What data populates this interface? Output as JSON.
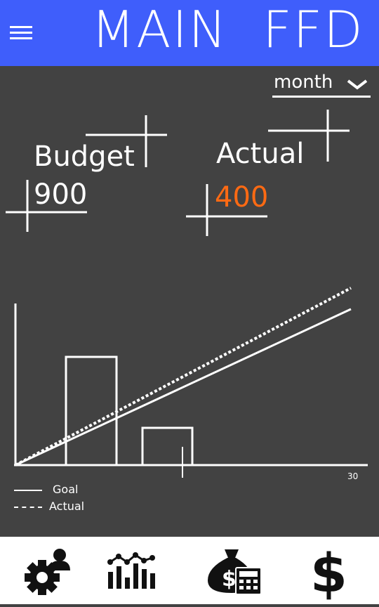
{
  "header": {
    "title": "MAIN  FFD",
    "menu_icon": "hamburger-menu-icon",
    "bg_color": "#3f5efb"
  },
  "period_select": {
    "value": "month",
    "icon": "chevron-down-icon"
  },
  "budget": {
    "label": "Budget",
    "value": "900"
  },
  "actual": {
    "label": "Actual",
    "value": "400",
    "color": "#ff6a13"
  },
  "chart_data": {
    "type": "line",
    "x_tick_labels": [
      "30"
    ],
    "legend": [
      {
        "name": "Goal",
        "style": "solid"
      },
      {
        "name": "Actual",
        "style": "dashed"
      }
    ],
    "legend_position": "bottom-left"
  },
  "nav": [
    {
      "name": "settings",
      "icon": "gear-user-icon"
    },
    {
      "name": "stats",
      "icon": "bar-line-chart-icon"
    },
    {
      "name": "budget",
      "icon": "money-bag-calculator-icon"
    },
    {
      "name": "money",
      "icon": "dollar-icon"
    }
  ]
}
